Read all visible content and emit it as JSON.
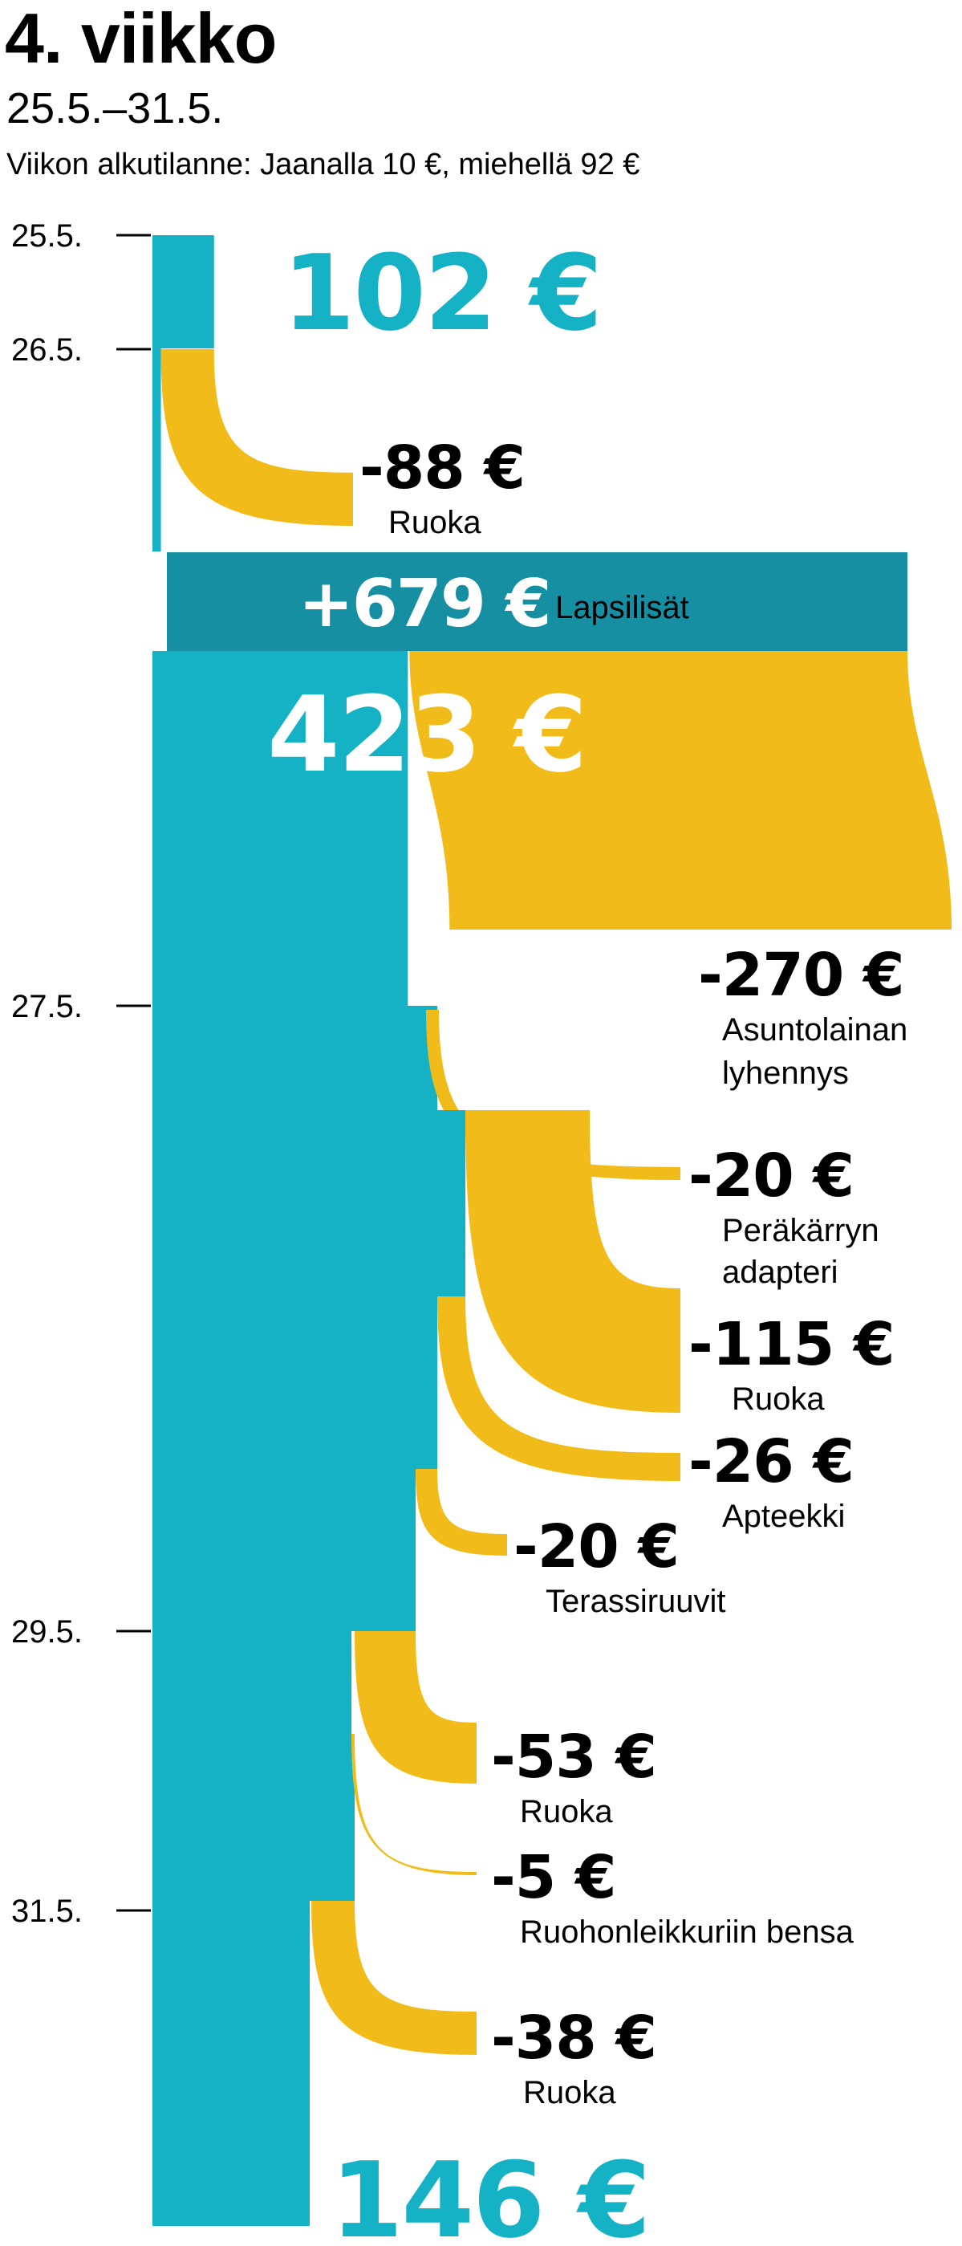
{
  "header": {
    "title": "4. viikko",
    "subtitle": "25.5.–31.5.",
    "intro": "Viikon alkutilanne: Jaanalla 10 €, miehellä 92 €"
  },
  "colors": {
    "balance": "#15b2c6",
    "income": "#178fa3",
    "expense": "#f1bc1a",
    "balance_text": "#15b2c6",
    "income_text": "#ffffff",
    "text": "#000000"
  },
  "chart_data": {
    "type": "waterfall",
    "currency": "€",
    "date_ticks": [
      "25.5.",
      "26.5.",
      "27.5.",
      "29.5.",
      "31.5."
    ],
    "start_balance": {
      "value": 102,
      "label": "102 €"
    },
    "after_income_balance": {
      "value": 423,
      "label": "423 €"
    },
    "end_balance": {
      "value": 146,
      "label": "146 €"
    },
    "income": [
      {
        "value": 679,
        "amount": "+679 €",
        "label": "Lapsilisät"
      }
    ],
    "expenses": [
      {
        "value": -88,
        "amount": "-88 €",
        "label": "Ruoka"
      },
      {
        "value": -270,
        "amount": "-270 €",
        "label": "Asuntolainan lyhennys"
      },
      {
        "value": -20,
        "amount": "-20 €",
        "label": "Peräkärryn adapteri"
      },
      {
        "value": -115,
        "amount": "-115 €",
        "label": "Ruoka"
      },
      {
        "value": -26,
        "amount": "-26 €",
        "label": "Apteekki"
      },
      {
        "value": -20,
        "amount": "-20 €",
        "label": "Terassiruuvit"
      },
      {
        "value": -53,
        "amount": "-53 €",
        "label": "Ruoka"
      },
      {
        "value": -5,
        "amount": "-5 €",
        "label": "Ruohonleikkuriin bensa"
      },
      {
        "value": -38,
        "amount": "-38 €",
        "label": "Ruoka"
      }
    ]
  }
}
